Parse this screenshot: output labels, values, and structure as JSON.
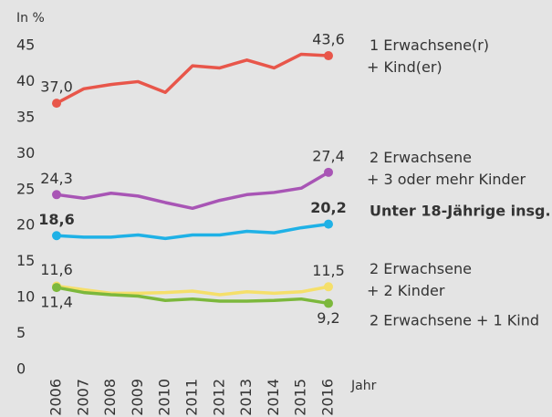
{
  "chart_data": {
    "type": "line",
    "y_label": "In %",
    "x_label": "Jahr",
    "x": [
      "2006",
      "2007",
      "2008",
      "2009",
      "2010",
      "2011",
      "2012",
      "2013",
      "2014",
      "2015",
      "2016"
    ],
    "ylim": [
      0,
      45
    ],
    "yticks": [
      0,
      5,
      10,
      15,
      20,
      25,
      30,
      35,
      40,
      45
    ],
    "grid": false,
    "series": [
      {
        "name": "1 Erwachsene(r)\n+ Kind(er)",
        "color": "#e8564a",
        "values": [
          37.0,
          39.0,
          39.6,
          40.0,
          38.5,
          42.2,
          41.9,
          43.0,
          41.9,
          43.8,
          43.6
        ],
        "value_labels": [
          "37,0",
          null,
          null,
          null,
          null,
          null,
          null,
          null,
          null,
          null,
          "43,6"
        ]
      },
      {
        "name": "2 Erwachsene\n+ 3 oder mehr Kinder",
        "color": "#a855b5",
        "values": [
          24.3,
          23.8,
          24.5,
          24.1,
          23.2,
          22.4,
          23.5,
          24.3,
          24.6,
          25.2,
          27.4
        ],
        "value_labels": [
          "24,3",
          null,
          null,
          null,
          null,
          null,
          null,
          null,
          null,
          null,
          "27,4"
        ]
      },
      {
        "name": "Unter 18-Jährige insg.",
        "color": "#1fb1e6",
        "bold": true,
        "values": [
          18.6,
          18.4,
          18.4,
          18.7,
          18.2,
          18.7,
          18.7,
          19.2,
          19.0,
          19.7,
          20.2
        ],
        "value_labels": [
          "18,6",
          null,
          null,
          null,
          null,
          null,
          null,
          null,
          null,
          null,
          "20,2"
        ]
      },
      {
        "name": "2 Erwachsene\n+ 2 Kinder",
        "color": "#f5df6a",
        "values": [
          11.6,
          11.1,
          10.6,
          10.6,
          10.7,
          10.9,
          10.4,
          10.8,
          10.6,
          10.8,
          11.5
        ],
        "value_labels": [
          "11,6",
          null,
          null,
          null,
          null,
          null,
          null,
          null,
          null,
          null,
          "11,5"
        ]
      },
      {
        "name": "2 Erwachsene + 1 Kind",
        "color": "#7cb83c",
        "values": [
          11.4,
          10.7,
          10.4,
          10.2,
          9.6,
          9.8,
          9.5,
          9.5,
          9.6,
          9.8,
          9.2
        ],
        "value_labels": [
          "11,4",
          null,
          null,
          null,
          null,
          null,
          null,
          null,
          null,
          null,
          "9,2"
        ]
      }
    ]
  }
}
